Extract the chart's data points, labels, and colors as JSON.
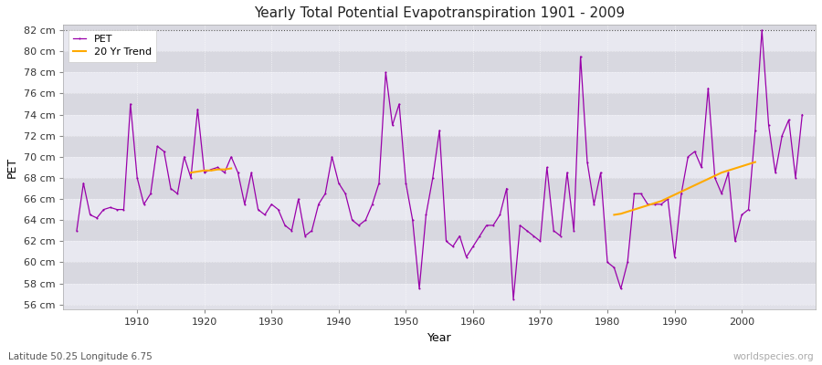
{
  "title": "Yearly Total Potential Evapotranspiration 1901 - 2009",
  "xlabel": "Year",
  "ylabel": "PET",
  "subtitle_left": "Latitude 50.25 Longitude 6.75",
  "subtitle_right": "worldspecies.org",
  "pet_color": "#9900aa",
  "trend_color": "#ffaa00",
  "bg_color": "#ffffff",
  "plot_bg_color": "#e0e0e8",
  "band_light": "#e8e8f0",
  "band_dark": "#d8d8e0",
  "ylim": [
    55.5,
    82.5
  ],
  "yticks": [
    56,
    58,
    60,
    62,
    64,
    66,
    68,
    70,
    72,
    74,
    76,
    78,
    80,
    82
  ],
  "xlim": [
    1899,
    2011
  ],
  "xticks": [
    1910,
    1920,
    1930,
    1940,
    1950,
    1960,
    1970,
    1980,
    1990,
    2000
  ],
  "pet_data": {
    "1901": 63.0,
    "1902": 67.5,
    "1903": 64.5,
    "1904": 64.2,
    "1905": 65.0,
    "1906": 65.2,
    "1907": 65.0,
    "1908": 65.0,
    "1909": 75.0,
    "1910": 68.0,
    "1911": 65.5,
    "1912": 66.5,
    "1913": 71.0,
    "1914": 70.5,
    "1915": 67.0,
    "1916": 66.5,
    "1917": 70.0,
    "1918": 68.0,
    "1919": 74.5,
    "1920": 68.5,
    "1921": 68.8,
    "1922": 69.0,
    "1923": 68.5,
    "1924": 70.0,
    "1925": 68.5,
    "1926": 65.5,
    "1927": 68.5,
    "1928": 65.0,
    "1929": 64.5,
    "1930": 65.5,
    "1931": 65.0,
    "1932": 63.5,
    "1933": 63.0,
    "1934": 66.0,
    "1935": 62.5,
    "1936": 63.0,
    "1937": 65.5,
    "1938": 66.5,
    "1939": 70.0,
    "1940": 67.5,
    "1941": 66.5,
    "1942": 64.0,
    "1943": 63.5,
    "1944": 64.0,
    "1945": 65.5,
    "1946": 67.5,
    "1947": 78.0,
    "1948": 73.0,
    "1949": 75.0,
    "1950": 67.5,
    "1951": 64.0,
    "1952": 57.5,
    "1953": 64.5,
    "1954": 68.0,
    "1955": 72.5,
    "1956": 62.0,
    "1957": 61.5,
    "1958": 62.5,
    "1959": 60.5,
    "1960": 61.5,
    "1961": 62.5,
    "1962": 63.5,
    "1963": 63.5,
    "1964": 64.5,
    "1965": 67.0,
    "1966": 56.5,
    "1967": 63.5,
    "1968": 63.0,
    "1969": 62.5,
    "1970": 62.0,
    "1971": 69.0,
    "1972": 63.0,
    "1973": 62.5,
    "1974": 68.5,
    "1975": 63.0,
    "1976": 79.5,
    "1977": 69.5,
    "1978": 65.5,
    "1979": 68.5,
    "1980": 60.0,
    "1981": 59.5,
    "1982": 57.5,
    "1983": 60.0,
    "1984": 66.5,
    "1985": 66.5,
    "1986": 65.5,
    "1987": 65.5,
    "1988": 65.5,
    "1989": 66.0,
    "1990": 60.5,
    "1991": 66.5,
    "1992": 70.0,
    "1993": 70.5,
    "1994": 69.0,
    "1995": 76.5,
    "1996": 68.0,
    "1997": 66.5,
    "1998": 68.5,
    "1999": 62.0,
    "2000": 64.5,
    "2001": 65.0,
    "2002": 72.5,
    "2003": 82.0,
    "2004": 73.0,
    "2005": 68.5,
    "2006": 72.0,
    "2007": 73.5,
    "2008": 68.0,
    "2009": 74.0
  },
  "trend_seg1_years": [
    1918,
    1919,
    1920,
    1921,
    1922,
    1923,
    1924
  ],
  "trend_seg1_vals": [
    68.5,
    68.6,
    68.7,
    68.7,
    68.8,
    68.8,
    68.9
  ],
  "trend_seg2_years": [
    1981,
    1982,
    1983,
    1984,
    1985,
    1986,
    1987,
    1988,
    1989,
    1990,
    1991,
    1992,
    1993,
    1994,
    1995,
    1996,
    1997,
    1998,
    1999,
    2000,
    2001,
    2002
  ],
  "trend_seg2_vals": [
    64.5,
    64.6,
    64.8,
    65.0,
    65.2,
    65.4,
    65.6,
    65.8,
    66.1,
    66.4,
    66.7,
    67.0,
    67.3,
    67.6,
    67.9,
    68.2,
    68.5,
    68.7,
    68.9,
    69.1,
    69.3,
    69.5
  ]
}
